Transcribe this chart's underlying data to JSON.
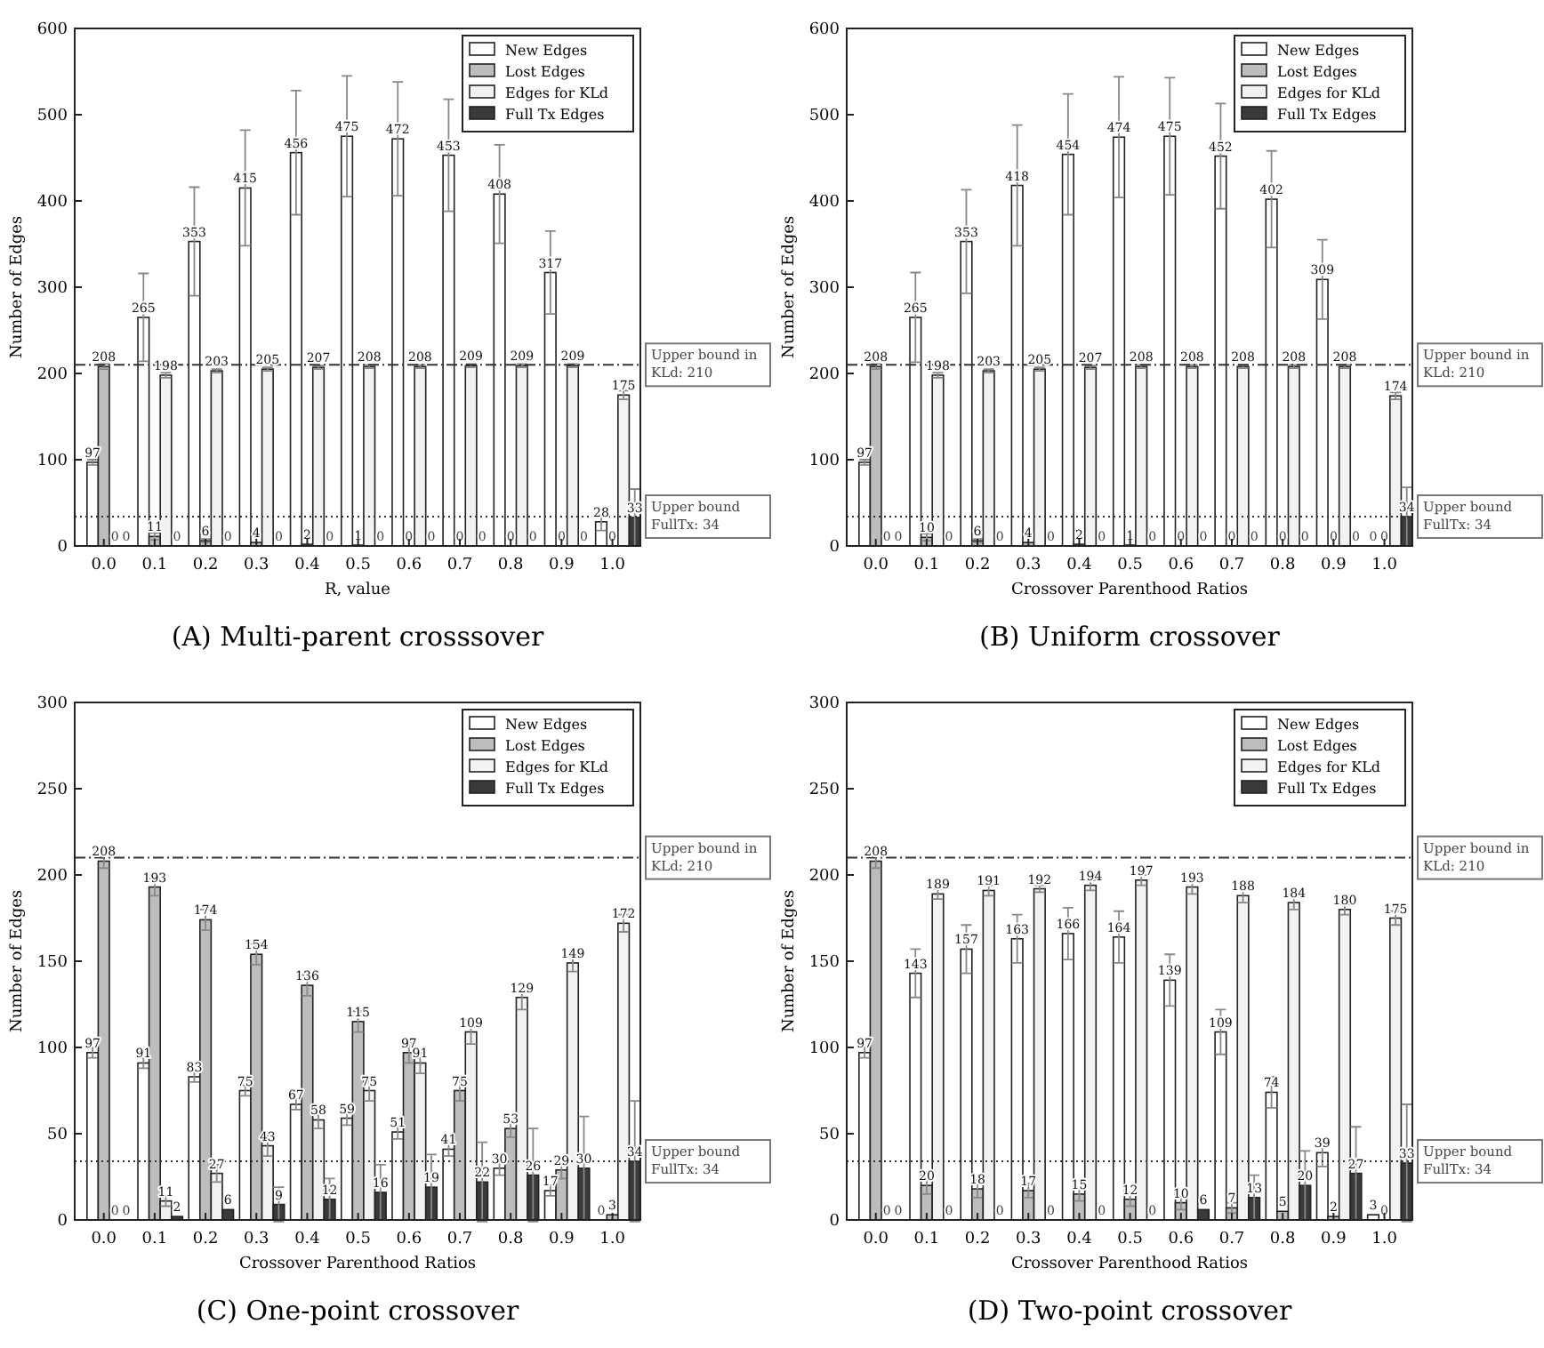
{
  "chart_data": [
    {
      "type": "bar",
      "title": "(A) Multi-parent crosssover",
      "xlabel": "R, value",
      "ylabel": "Number of Edges",
      "categories": [
        "0.0",
        "0.1",
        "0.2",
        "0.3",
        "0.4",
        "0.5",
        "0.6",
        "0.7",
        "0.8",
        "0.9",
        "1.0"
      ],
      "ylim": [
        0,
        600
      ],
      "yticks": [
        0,
        100,
        200,
        300,
        400,
        500,
        600
      ],
      "grid": false,
      "legend": "top right",
      "data_labels": true,
      "ref_lines": [
        {
          "axis": "y",
          "value": 210,
          "label": "Upper bound in KLd: 210",
          "line_style": "dashed",
          "color": "#333333"
        },
        {
          "axis": "y",
          "value": 34,
          "label": "Upper bound FullTx: 34",
          "line_style": "dotted",
          "color": "#333333"
        }
      ],
      "series": [
        {
          "name": "New Edges",
          "color": "#ffffff",
          "values": [
            97,
            265,
            353,
            415,
            456,
            475,
            472,
            453,
            408,
            317,
            28
          ],
          "errors": [
            3,
            51,
            63,
            67,
            72,
            70,
            66,
            65,
            57,
            48,
            10
          ]
        },
        {
          "name": "Lost Edges",
          "color": "#bdbdbd",
          "values": [
            208,
            11,
            6,
            4,
            2,
            1,
            0,
            0,
            0,
            0,
            0
          ],
          "errors": [
            3,
            4,
            2,
            null,
            null,
            null,
            null,
            null,
            null,
            null,
            null
          ]
        },
        {
          "name": "Edges for KLd",
          "color": "#f2f2f2",
          "values": [
            0,
            198,
            203,
            205,
            207,
            208,
            208,
            209,
            209,
            209,
            175
          ],
          "errors": [
            0,
            3,
            2,
            2,
            2,
            2,
            2,
            2,
            2,
            2,
            5
          ]
        },
        {
          "name": "Full Tx Edges",
          "color": "#3a3a3a",
          "values": [
            0,
            0,
            0,
            0,
            0,
            0,
            0,
            0,
            0,
            0,
            33
          ],
          "errors": [
            0,
            0,
            0,
            0,
            0,
            0,
            0,
            0,
            0,
            0,
            33
          ]
        }
      ]
    },
    {
      "type": "bar",
      "title": "(B) Uniform crossover",
      "xlabel": "Crossover Parenthood Ratios",
      "ylabel": "Number of Edges",
      "categories": [
        "0.0",
        "0.1",
        "0.2",
        "0.3",
        "0.4",
        "0.5",
        "0.6",
        "0.7",
        "0.8",
        "0.9",
        "1.0"
      ],
      "ylim": [
        0,
        600
      ],
      "yticks": [
        0,
        100,
        200,
        300,
        400,
        500,
        600
      ],
      "grid": false,
      "legend": "top right",
      "data_labels": true,
      "ref_lines": [
        {
          "axis": "y",
          "value": 210,
          "label": "Upper bound in KLd: 210",
          "line_style": "dashed",
          "color": "#333333"
        },
        {
          "axis": "y",
          "value": 34,
          "label": "Upper bound FullTx: 34",
          "line_style": "dotted",
          "color": "#333333"
        }
      ],
      "series": [
        {
          "name": "New Edges",
          "color": "#ffffff",
          "values": [
            97,
            265,
            353,
            418,
            454,
            474,
            475,
            452,
            402,
            309,
            0
          ],
          "errors": [
            3,
            52,
            60,
            70,
            70,
            70,
            68,
            61,
            56,
            46,
            0
          ]
        },
        {
          "name": "Lost Edges",
          "color": "#bdbdbd",
          "values": [
            208,
            10,
            6,
            4,
            2,
            1,
            0,
            0,
            0,
            0,
            0
          ],
          "errors": [
            3,
            4,
            2,
            null,
            null,
            null,
            null,
            null,
            null,
            null,
            null
          ]
        },
        {
          "name": "Edges for KLd",
          "color": "#f2f2f2",
          "values": [
            0,
            198,
            203,
            205,
            207,
            208,
            208,
            208,
            208,
            208,
            174
          ],
          "errors": [
            0,
            3,
            2,
            2,
            2,
            2,
            2,
            2,
            2,
            2,
            4
          ]
        },
        {
          "name": "Full Tx Edges",
          "color": "#3a3a3a",
          "values": [
            0,
            0,
            0,
            0,
            0,
            0,
            0,
            0,
            0,
            0,
            34
          ],
          "errors": [
            0,
            0,
            0,
            0,
            0,
            0,
            0,
            0,
            0,
            0,
            34
          ]
        }
      ]
    },
    {
      "type": "bar",
      "title": "(C) One-point crossover",
      "xlabel": "Crossover Parenthood Ratios",
      "ylabel": "Number of Edges",
      "categories": [
        "0.0",
        "0.1",
        "0.2",
        "0.3",
        "0.4",
        "0.5",
        "0.6",
        "0.7",
        "0.8",
        "0.9",
        "1.0"
      ],
      "ylim": [
        0,
        300
      ],
      "yticks": [
        0,
        50,
        100,
        150,
        200,
        250,
        300
      ],
      "grid": false,
      "legend": "top right",
      "data_labels": true,
      "ref_lines": [
        {
          "axis": "y",
          "value": 210,
          "label": "Upper bound in KLd: 210",
          "line_style": "dashed",
          "color": "#333333"
        },
        {
          "axis": "y",
          "value": 34,
          "label": "Upper bound FullTx: 34",
          "line_style": "dotted",
          "color": "#333333"
        }
      ],
      "series": [
        {
          "name": "New Edges",
          "color": "#ffffff",
          "values": [
            97,
            91,
            83,
            75,
            67,
            59,
            51,
            41,
            30,
            17,
            0
          ],
          "errors": [
            3,
            3,
            3,
            3,
            3,
            4,
            4,
            4,
            4,
            3,
            0
          ]
        },
        {
          "name": "Lost Edges",
          "color": "#bdbdbd",
          "values": [
            208,
            193,
            174,
            154,
            136,
            115,
            97,
            75,
            53,
            29,
            3
          ],
          "errors": [
            4,
            5,
            6,
            6,
            6,
            6,
            6,
            6,
            5,
            5,
            null
          ]
        },
        {
          "name": "Edges for KLd",
          "color": "#f2f2f2",
          "values": [
            0,
            11,
            27,
            43,
            58,
            75,
            91,
            109,
            129,
            149,
            172
          ],
          "errors": [
            0,
            3,
            5,
            6,
            5,
            6,
            6,
            7,
            7,
            5,
            5
          ]
        },
        {
          "name": "Full Tx Edges",
          "color": "#3a3a3a",
          "values": [
            0,
            2,
            6,
            9,
            12,
            16,
            19,
            22,
            26,
            30,
            34
          ],
          "errors": [
            0,
            null,
            null,
            10,
            12,
            16,
            19,
            23,
            27,
            30,
            35
          ]
        }
      ]
    },
    {
      "type": "bar",
      "title": "(D) Two-point crossover",
      "xlabel": "Crossover Parenthood Ratios",
      "ylabel": "Number of Edges",
      "categories": [
        "0.0",
        "0.1",
        "0.2",
        "0.3",
        "0.4",
        "0.5",
        "0.6",
        "0.7",
        "0.8",
        "0.9",
        "1.0"
      ],
      "ylim": [
        0,
        300
      ],
      "yticks": [
        0,
        50,
        100,
        150,
        200,
        250,
        300
      ],
      "grid": false,
      "legend": "top right",
      "data_labels": true,
      "ref_lines": [
        {
          "axis": "y",
          "value": 210,
          "label": "Upper bound in KLd: 210",
          "line_style": "dashed",
          "color": "#333333"
        },
        {
          "axis": "y",
          "value": 34,
          "label": "Upper bound FullTx: 34",
          "line_style": "dotted",
          "color": "#333333"
        }
      ],
      "series": [
        {
          "name": "New Edges",
          "color": "#ffffff",
          "values": [
            97,
            143,
            157,
            163,
            166,
            164,
            139,
            109,
            74,
            39,
            3
          ],
          "errors": [
            3,
            14,
            14,
            14,
            15,
            15,
            15,
            13,
            9,
            8,
            null
          ]
        },
        {
          "name": "Lost Edges",
          "color": "#bdbdbd",
          "values": [
            208,
            20,
            18,
            17,
            15,
            12,
            10,
            7,
            5,
            2,
            0
          ],
          "errors": [
            4,
            5,
            5,
            4,
            4,
            4,
            4,
            3,
            null,
            null,
            0
          ]
        },
        {
          "name": "Edges for KLd",
          "color": "#f2f2f2",
          "values": [
            0,
            189,
            191,
            192,
            194,
            197,
            193,
            188,
            184,
            180,
            175
          ],
          "errors": [
            0,
            3,
            3,
            2,
            3,
            3,
            4,
            4,
            4,
            3,
            4
          ]
        },
        {
          "name": "Full Tx Edges",
          "color": "#3a3a3a",
          "values": [
            0,
            0,
            0,
            0,
            0,
            0,
            6,
            13,
            20,
            27,
            33
          ],
          "errors": [
            0,
            0,
            0,
            0,
            0,
            0,
            null,
            13,
            20,
            27,
            34
          ]
        }
      ]
    }
  ]
}
